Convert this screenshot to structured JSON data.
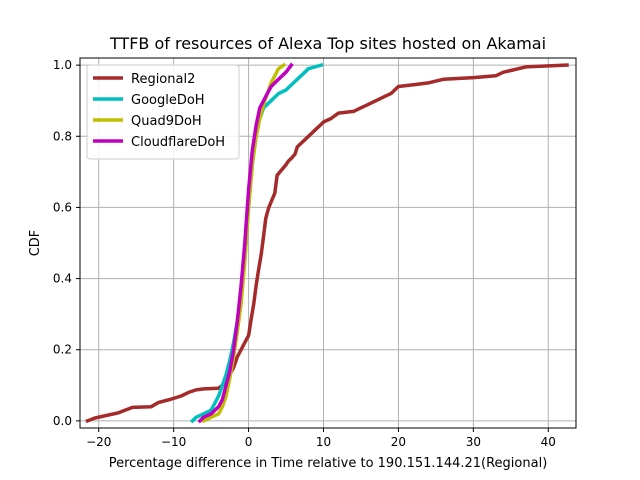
{
  "chart_data": {
    "type": "line",
    "title": "TTFB of resources of Alexa Top sites hosted on Akamai",
    "xlabel": "Percentage difference in Time relative to 190.151.144.21(Regional)",
    "ylabel": "CDF",
    "xlim": [
      -22.5,
      43.7
    ],
    "ylim": [
      -0.02,
      1.02
    ],
    "xticks": [
      -20,
      -10,
      0,
      10,
      20,
      30,
      40
    ],
    "yticks": [
      0.0,
      0.2,
      0.4,
      0.6,
      0.8,
      1.0
    ],
    "xtick_labels": [
      "−20",
      "−10",
      "0",
      "10",
      "20",
      "30",
      "40"
    ],
    "ytick_labels": [
      "0.0",
      "0.2",
      "0.4",
      "0.6",
      "0.8",
      "1.0"
    ],
    "grid": true,
    "legend": "top-left",
    "series": [
      {
        "name": "Regional2",
        "color": "#a52a2a",
        "points": [
          [
            -21.5,
            0.0
          ],
          [
            -20.5,
            0.008
          ],
          [
            -19,
            0.015
          ],
          [
            -17.5,
            0.022
          ],
          [
            -16.5,
            0.03
          ],
          [
            -15.5,
            0.038
          ],
          [
            -13,
            0.04
          ],
          [
            -12,
            0.052
          ],
          [
            -10.5,
            0.06
          ],
          [
            -9,
            0.07
          ],
          [
            -8,
            0.08
          ],
          [
            -7,
            0.087
          ],
          [
            -6,
            0.09
          ],
          [
            -4,
            0.092
          ],
          [
            -3.5,
            0.1
          ],
          [
            -3,
            0.11
          ],
          [
            -2.5,
            0.13
          ],
          [
            -2,
            0.15
          ],
          [
            -1.5,
            0.18
          ],
          [
            -1,
            0.2
          ],
          [
            -0.5,
            0.22
          ],
          [
            0,
            0.24
          ],
          [
            0.3,
            0.28
          ],
          [
            0.7,
            0.33
          ],
          [
            1,
            0.38
          ],
          [
            1.3,
            0.42
          ],
          [
            1.7,
            0.47
          ],
          [
            2,
            0.52
          ],
          [
            2.3,
            0.57
          ],
          [
            2.7,
            0.6
          ],
          [
            3.1,
            0.62
          ],
          [
            3.5,
            0.64
          ],
          [
            3.8,
            0.69
          ],
          [
            4.2,
            0.7
          ],
          [
            4.6,
            0.71
          ],
          [
            5,
            0.72
          ],
          [
            5.3,
            0.73
          ],
          [
            5.8,
            0.74
          ],
          [
            6.2,
            0.75
          ],
          [
            6.5,
            0.77
          ],
          [
            7,
            0.78
          ],
          [
            7.5,
            0.79
          ],
          [
            8,
            0.8
          ],
          [
            8.5,
            0.81
          ],
          [
            9,
            0.82
          ],
          [
            9.5,
            0.83
          ],
          [
            10,
            0.84
          ],
          [
            11,
            0.85
          ],
          [
            12,
            0.865
          ],
          [
            14,
            0.87
          ],
          [
            15,
            0.88
          ],
          [
            16,
            0.89
          ],
          [
            17,
            0.9
          ],
          [
            18,
            0.91
          ],
          [
            19,
            0.92
          ],
          [
            20,
            0.94
          ],
          [
            22,
            0.945
          ],
          [
            24,
            0.95
          ],
          [
            25,
            0.955
          ],
          [
            26,
            0.96
          ],
          [
            30,
            0.965
          ],
          [
            33,
            0.97
          ],
          [
            34,
            0.98
          ],
          [
            35,
            0.985
          ],
          [
            37,
            0.995
          ],
          [
            42.5,
            1.0
          ]
        ]
      },
      {
        "name": "GoogleDoH",
        "color": "#00bfbf",
        "points": [
          [
            -7.5,
            0.0
          ],
          [
            -7,
            0.01
          ],
          [
            -6,
            0.02
          ],
          [
            -5,
            0.03
          ],
          [
            -4.5,
            0.05
          ],
          [
            -4,
            0.07
          ],
          [
            -3.5,
            0.1
          ],
          [
            -3,
            0.13
          ],
          [
            -2.5,
            0.17
          ],
          [
            -2,
            0.22
          ],
          [
            -1.5,
            0.28
          ],
          [
            -1,
            0.35
          ],
          [
            -0.5,
            0.45
          ],
          [
            0,
            0.6
          ],
          [
            0.5,
            0.72
          ],
          [
            1,
            0.8
          ],
          [
            1.5,
            0.85
          ],
          [
            2,
            0.88
          ],
          [
            3,
            0.9
          ],
          [
            4,
            0.92
          ],
          [
            5,
            0.93
          ],
          [
            6,
            0.95
          ],
          [
            7,
            0.97
          ],
          [
            8,
            0.99
          ],
          [
            9.7,
            1.0
          ]
        ]
      },
      {
        "name": "Quad9DoH",
        "color": "#bfbf00",
        "points": [
          [
            -6,
            0.0
          ],
          [
            -5,
            0.01
          ],
          [
            -4,
            0.02
          ],
          [
            -3.5,
            0.04
          ],
          [
            -3,
            0.07
          ],
          [
            -2.5,
            0.12
          ],
          [
            -2,
            0.18
          ],
          [
            -1.5,
            0.25
          ],
          [
            -1,
            0.33
          ],
          [
            -0.5,
            0.45
          ],
          [
            0,
            0.6
          ],
          [
            0.5,
            0.72
          ],
          [
            1,
            0.8
          ],
          [
            1.5,
            0.85
          ],
          [
            2,
            0.89
          ],
          [
            2.5,
            0.92
          ],
          [
            3,
            0.95
          ],
          [
            3.5,
            0.97
          ],
          [
            4,
            0.99
          ],
          [
            4.7,
            1.0
          ]
        ]
      },
      {
        "name": "CloudflareDoH",
        "color": "#bf00bf",
        "points": [
          [
            -6.5,
            0.0
          ],
          [
            -6,
            0.01
          ],
          [
            -5,
            0.02
          ],
          [
            -4,
            0.04
          ],
          [
            -3.5,
            0.06
          ],
          [
            -3,
            0.1
          ],
          [
            -2.5,
            0.14
          ],
          [
            -2,
            0.2
          ],
          [
            -1.5,
            0.28
          ],
          [
            -1,
            0.38
          ],
          [
            -0.5,
            0.5
          ],
          [
            0,
            0.65
          ],
          [
            0.5,
            0.76
          ],
          [
            1,
            0.83
          ],
          [
            1.5,
            0.88
          ],
          [
            2,
            0.9
          ],
          [
            2.5,
            0.92
          ],
          [
            3,
            0.94
          ],
          [
            4,
            0.96
          ],
          [
            5,
            0.98
          ],
          [
            5.7,
            1.0
          ]
        ]
      }
    ]
  }
}
